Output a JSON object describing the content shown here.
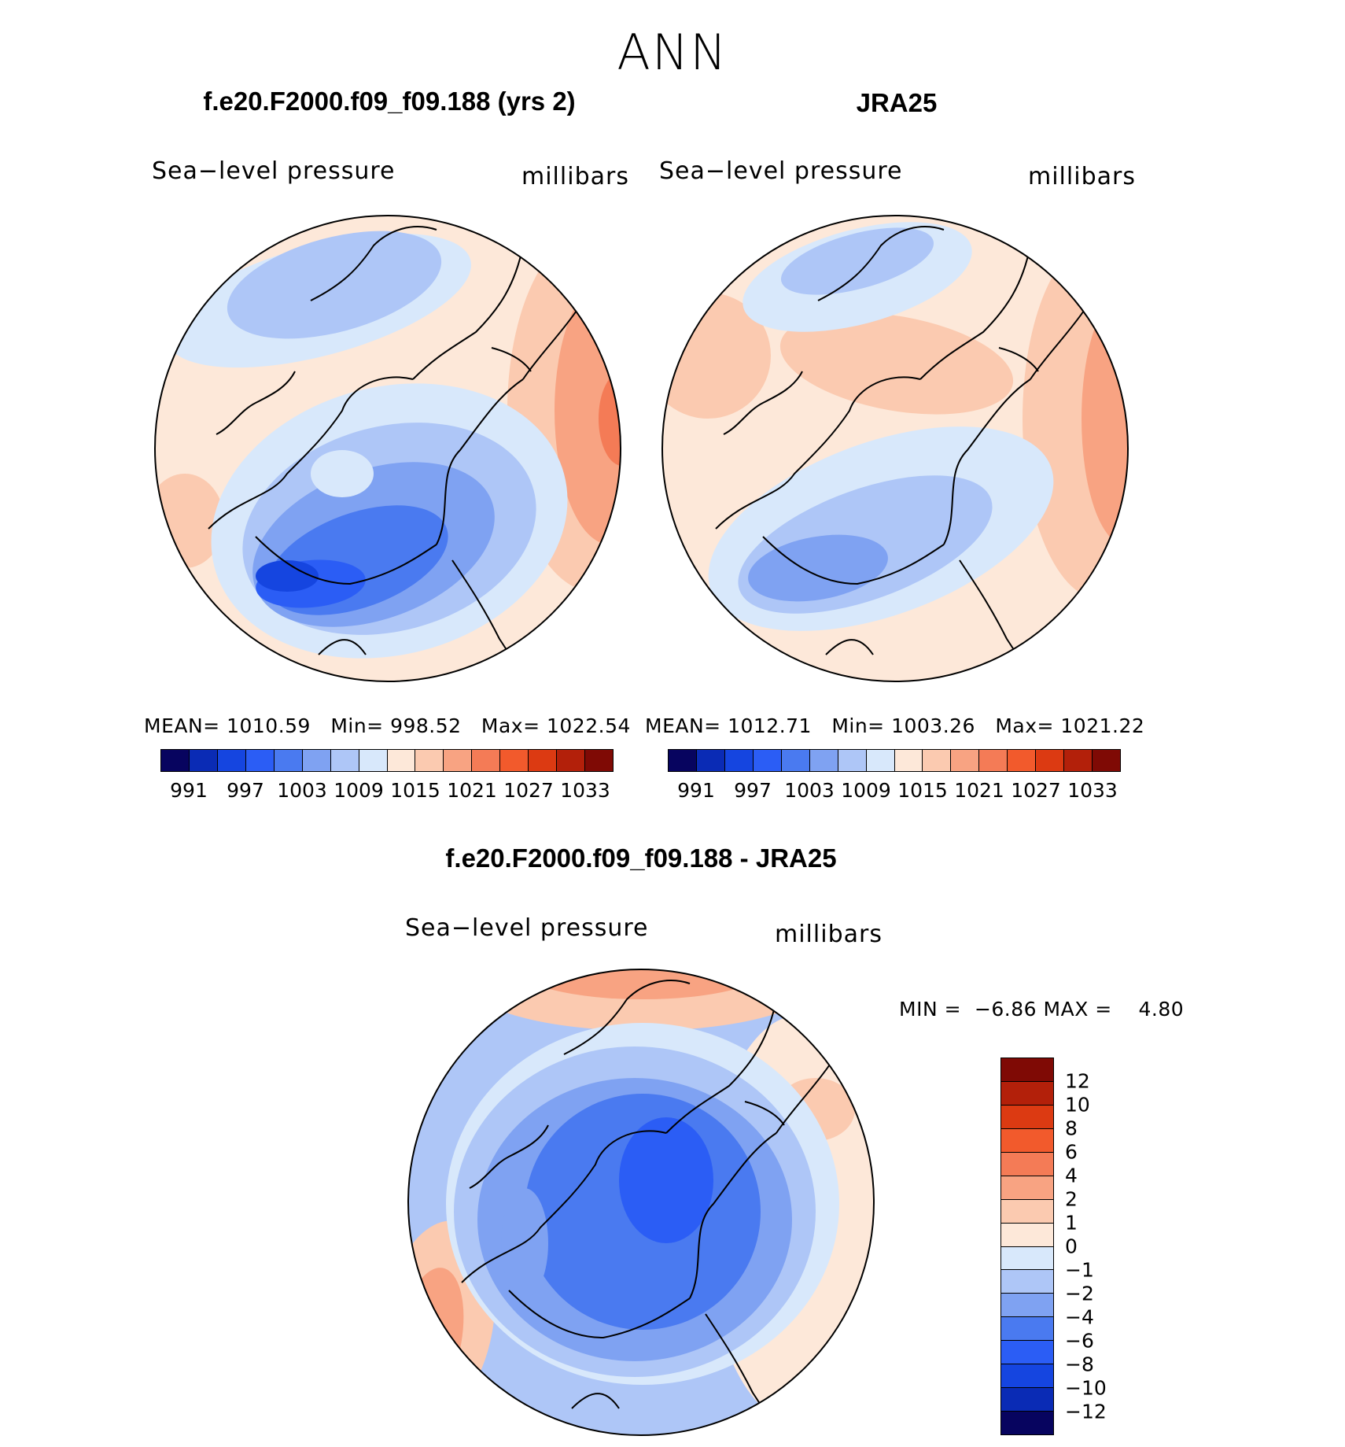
{
  "suptitle": "ANN",
  "panels": [
    {
      "title": "f.e20.F2000.f09_f09.188 (yrs 2)",
      "variable": "Sea−level pressure",
      "units": "millibars",
      "mean_label": "MEAN=",
      "mean": "1010.59",
      "min_label": "Min=",
      "min": "998.52",
      "max_label": "Max=",
      "max": "1022.54",
      "colorbar_ticks": [
        "991",
        "997",
        "1003",
        "1009",
        "1015",
        "1021",
        "1027",
        "1033"
      ],
      "field": "model"
    },
    {
      "title": "JRA25",
      "variable": "Sea−level pressure",
      "units": "millibars",
      "mean_label": "MEAN=",
      "mean": "1012.71",
      "min_label": "Min=",
      "min": "1003.26",
      "max_label": "Max=",
      "max": "1021.22",
      "colorbar_ticks": [
        "991",
        "997",
        "1003",
        "1009",
        "1015",
        "1021",
        "1027",
        "1033"
      ],
      "field": "obs"
    }
  ],
  "diff_panel": {
    "title": "f.e20.F2000.f09_f09.188 - JRA25",
    "variable": "Sea−level pressure",
    "units": "millibars",
    "min_label": "MIN =",
    "min": "−6.86",
    "max_label": "MAX =",
    "max": "4.80",
    "colorbar_ticks": [
      "12",
      "10",
      "8",
      "6",
      "4",
      "2",
      "1",
      "0",
      "−1",
      "−2",
      "−4",
      "−6",
      "−8",
      "−10",
      "−12"
    ]
  },
  "colors": {
    "abs_scale": [
      "#07045f",
      "#0a2bb5",
      "#1545e0",
      "#2b5df5",
      "#4a7af0",
      "#7fa2f2",
      "#aec6f7",
      "#d8e8fb",
      "#fde8d9",
      "#fbcab0",
      "#f8a382",
      "#f47b56",
      "#f25a2c",
      "#dc3a12",
      "#b3200a",
      "#7f0a05"
    ],
    "diff_scale": [
      "#07045f",
      "#0a2bb5",
      "#1545e0",
      "#2b5df5",
      "#4a7af0",
      "#7fa2f2",
      "#aec6f7",
      "#d8e8fb",
      "#fde8d9",
      "#fbcab0",
      "#f8a382",
      "#f47b56",
      "#f25a2c",
      "#dc3a12",
      "#b3200a",
      "#7f0a05"
    ]
  }
}
